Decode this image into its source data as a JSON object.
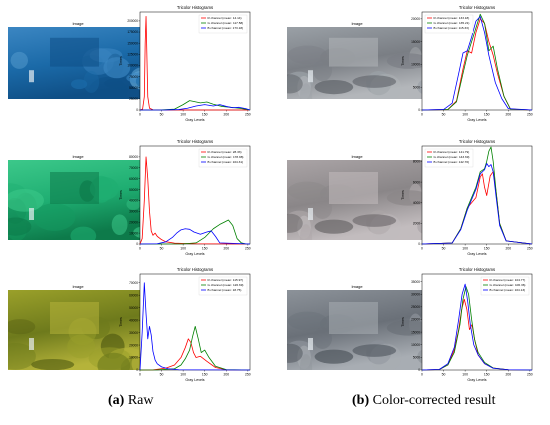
{
  "image_title": "Image",
  "captions": {
    "left_label": "(a)",
    "left_text": "Raw",
    "right_label": "(b)",
    "right_text": "Color-corrected result"
  },
  "photos": [
    {
      "id": "raw-1",
      "scene": "underwater wreck structure, blue cast",
      "colors": [
        "#1b6aa8",
        "#3b86c2",
        "#5aa0d0",
        "#0f4f86"
      ]
    },
    {
      "id": "raw-2",
      "scene": "seafloor rocks, green cast",
      "colors": [
        "#1fae72",
        "#3cc88a",
        "#159a60",
        "#0d7a4a"
      ]
    },
    {
      "id": "raw-3",
      "scene": "diver and equipment, yellow cast",
      "colors": [
        "#6e7a1c",
        "#9aa02a",
        "#4f5a10",
        "#b5b33a"
      ]
    },
    {
      "id": "corr-1",
      "scene": "underwater wreck structure, corrected",
      "colors": [
        "#7a7e84",
        "#9aa0a6",
        "#5e6268",
        "#b3b6ba"
      ]
    },
    {
      "id": "corr-2",
      "scene": "seafloor rocks, corrected",
      "colors": [
        "#8a8688",
        "#aaa4a6",
        "#6a6668",
        "#c2bcbe"
      ]
    },
    {
      "id": "corr-3",
      "scene": "diver and equipment, corrected",
      "colors": [
        "#6a7078",
        "#8c9299",
        "#4f555d",
        "#a8adb3"
      ]
    }
  ],
  "chart_data": [
    {
      "type": "line",
      "title": "Tricolor Histograms",
      "xlabel": "Gray Levels",
      "ylabel": "Times",
      "xlim": [
        0,
        255
      ],
      "ylim": [
        0,
        220000
      ],
      "yticks": [
        0,
        25000,
        50000,
        75000,
        100000,
        125000,
        150000,
        175000,
        200000
      ],
      "xticks": [
        0,
        50,
        100,
        150,
        200,
        250
      ],
      "legend_loc": "upper right",
      "series": [
        {
          "name": "R channel (mean: 14.14)",
          "color": "#ff0000",
          "x": [
            0,
            6,
            10,
            12,
            14,
            16,
            18,
            22,
            30,
            50,
            100,
            150,
            200,
            255
          ],
          "y": [
            0,
            2000,
            30000,
            150000,
            210000,
            120000,
            30000,
            4000,
            500,
            100,
            50,
            20,
            10,
            0
          ]
        },
        {
          "name": "G channel (mean: 117.58)",
          "color": "#008000",
          "x": [
            0,
            50,
            80,
            100,
            115,
            125,
            140,
            155,
            170,
            190,
            210,
            230,
            250,
            255
          ],
          "y": [
            0,
            100,
            2000,
            12000,
            21000,
            19000,
            16000,
            18000,
            13000,
            8000,
            6000,
            4000,
            1000,
            0
          ]
        },
        {
          "name": "B channel (mean: 173.18)",
          "color": "#0000ff",
          "x": [
            0,
            60,
            90,
            110,
            130,
            150,
            170,
            185,
            200,
            215,
            230,
            245,
            255
          ],
          "y": [
            0,
            100,
            1000,
            4000,
            9000,
            12000,
            9000,
            12000,
            8000,
            5000,
            6000,
            3000,
            0
          ]
        }
      ]
    },
    {
      "type": "line",
      "title": "Tricolor Histograms",
      "xlabel": "Gray Levels",
      "ylabel": "Times",
      "xlim": [
        0,
        255
      ],
      "ylim": [
        0,
        21500
      ],
      "yticks": [
        0,
        5000,
        10000,
        15000,
        20000
      ],
      "xticks": [
        0,
        50,
        100,
        150,
        200,
        250
      ],
      "legend_loc": "upper left",
      "series": [
        {
          "name": "R channel (mean: 133.18)",
          "color": "#ff0000",
          "x": [
            0,
            60,
            80,
            95,
            105,
            115,
            125,
            135,
            145,
            155,
            165,
            175,
            190,
            205,
            255
          ],
          "y": [
            0,
            100,
            2000,
            9000,
            13000,
            12500,
            17000,
            20000,
            19000,
            15000,
            12000,
            8000,
            3000,
            200,
            0
          ]
        },
        {
          "name": "G channel (mean: 135.21)",
          "color": "#008000",
          "x": [
            0,
            60,
            80,
            95,
            105,
            115,
            125,
            135,
            145,
            155,
            165,
            175,
            190,
            205,
            255
          ],
          "y": [
            0,
            100,
            1800,
            8000,
            12000,
            15000,
            18000,
            21000,
            19000,
            13000,
            14000,
            9000,
            3000,
            200,
            0
          ]
        },
        {
          "name": "B channel (mean: 115.33)",
          "color": "#0000ff",
          "x": [
            0,
            50,
            70,
            85,
            95,
            105,
            115,
            125,
            135,
            145,
            155,
            170,
            185,
            200,
            255
          ],
          "y": [
            0,
            100,
            1500,
            8000,
            12500,
            13000,
            16000,
            19500,
            20500,
            17000,
            12000,
            6000,
            2500,
            300,
            0
          ]
        }
      ]
    },
    {
      "type": "line",
      "title": "Tricolor Histograms",
      "xlabel": "Gray Levels",
      "ylabel": "Times",
      "xlim": [
        0,
        255
      ],
      "ylim": [
        0,
        90000
      ],
      "yticks": [
        0,
        10000,
        20000,
        30000,
        40000,
        50000,
        60000,
        70000,
        80000
      ],
      "xticks": [
        0,
        50,
        100,
        150,
        200,
        250
      ],
      "legend_loc": "upper right",
      "series": [
        {
          "name": "R channel (mean: 28.33)",
          "color": "#ff0000",
          "x": [
            0,
            5,
            10,
            14,
            18,
            22,
            26,
            30,
            35,
            40,
            50,
            60,
            80,
            120,
            255
          ],
          "y": [
            0,
            5000,
            40000,
            80000,
            60000,
            30000,
            12000,
            8000,
            10000,
            7000,
            4000,
            2000,
            800,
            200,
            0
          ]
        },
        {
          "name": "G channel (mean: 178.98)",
          "color": "#008000",
          "x": [
            0,
            100,
            130,
            150,
            170,
            185,
            195,
            205,
            215,
            225,
            235,
            245,
            255
          ],
          "y": [
            0,
            100,
            1000,
            6000,
            14000,
            18000,
            20000,
            22000,
            17000,
            5000,
            1000,
            100,
            0
          ]
        },
        {
          "name": "B channel (mean: 104.31)",
          "color": "#0000ff",
          "x": [
            0,
            40,
            60,
            75,
            85,
            95,
            105,
            115,
            125,
            140,
            155,
            165,
            175,
            185,
            255
          ],
          "y": [
            0,
            200,
            2000,
            6000,
            10000,
            13000,
            14000,
            13500,
            11000,
            9000,
            11000,
            12000,
            7000,
            1000,
            0
          ]
        }
      ]
    },
    {
      "type": "line",
      "title": "Tricolor Histograms",
      "xlabel": "Gray Levels",
      "ylabel": "Times",
      "xlim": [
        0,
        255
      ],
      "ylim": [
        0,
        9500
      ],
      "yticks": [
        0,
        2000,
        4000,
        6000,
        8000
      ],
      "xticks": [
        0,
        50,
        100,
        150,
        200,
        250
      ],
      "legend_loc": "upper left",
      "series": [
        {
          "name": "R channel (mean: 141.79)",
          "color": "#ff0000",
          "x": [
            0,
            70,
            90,
            105,
            115,
            125,
            135,
            140,
            145,
            150,
            158,
            165,
            172,
            180,
            195,
            255
          ],
          "y": [
            0,
            100,
            1500,
            3500,
            4000,
            4500,
            6500,
            6800,
            5500,
            4700,
            6600,
            7000,
            5000,
            2000,
            300,
            0
          ]
        },
        {
          "name": "G channel (mean: 143.69)",
          "color": "#008000",
          "x": [
            0,
            70,
            90,
            105,
            115,
            125,
            135,
            145,
            150,
            155,
            160,
            165,
            172,
            180,
            195,
            255
          ],
          "y": [
            0,
            100,
            1500,
            3500,
            4500,
            5500,
            7000,
            7300,
            8000,
            9000,
            9400,
            8000,
            5000,
            2000,
            300,
            0
          ]
        },
        {
          "name": "B channel (mean: 142.70)",
          "color": "#0000ff",
          "x": [
            0,
            70,
            90,
            105,
            115,
            125,
            135,
            145,
            150,
            155,
            160,
            165,
            172,
            180,
            195,
            255
          ],
          "y": [
            0,
            100,
            1400,
            3300,
            4300,
            5300,
            6800,
            7200,
            7800,
            7500,
            7700,
            7000,
            4500,
            1800,
            300,
            0
          ]
        }
      ]
    },
    {
      "type": "line",
      "title": "Tricolor Histograms",
      "xlabel": "Gray Levels",
      "ylabel": "Times",
      "xlim": [
        0,
        255
      ],
      "ylim": [
        0,
        77000
      ],
      "yticks": [
        0,
        10000,
        20000,
        30000,
        40000,
        50000,
        60000,
        70000
      ],
      "xticks": [
        0,
        50,
        100,
        150,
        200,
        250
      ],
      "legend_loc": "upper right",
      "series": [
        {
          "name": "R channel (mean: 115.97)",
          "color": "#ff0000",
          "x": [
            0,
            30,
            60,
            80,
            95,
            105,
            112,
            118,
            124,
            130,
            140,
            155,
            175,
            200,
            255
          ],
          "y": [
            0,
            100,
            1500,
            4000,
            10000,
            18000,
            25000,
            22000,
            14000,
            10000,
            11000,
            7000,
            2000,
            200,
            0
          ]
        },
        {
          "name": "G channel (mean: 126.69)",
          "color": "#008000",
          "x": [
            0,
            40,
            80,
            95,
            105,
            115,
            122,
            128,
            135,
            142,
            150,
            160,
            175,
            200,
            255
          ],
          "y": [
            0,
            100,
            1000,
            4000,
            9000,
            16000,
            27000,
            35000,
            25000,
            14000,
            16000,
            10000,
            3000,
            300,
            0
          ]
        },
        {
          "name": "B channel (mean: 18.75)",
          "color": "#0000ff",
          "x": [
            0,
            5,
            10,
            14,
            18,
            22,
            26,
            30,
            35,
            40,
            50,
            65,
            90,
            255
          ],
          "y": [
            0,
            30000,
            70000,
            45000,
            25000,
            35000,
            28000,
            15000,
            8000,
            5000,
            2500,
            1000,
            200,
            0
          ]
        }
      ]
    },
    {
      "type": "line",
      "title": "Tricolor Histograms",
      "xlabel": "Gray Levels",
      "ylabel": "Times",
      "xlim": [
        0,
        255
      ],
      "ylim": [
        0,
        38000
      ],
      "yticks": [
        0,
        5000,
        10000,
        15000,
        20000,
        25000,
        30000,
        35000
      ],
      "xticks": [
        0,
        50,
        100,
        150,
        200,
        250
      ],
      "legend_loc": "upper right",
      "series": [
        {
          "name": "R channel (mean: 104.77)",
          "color": "#ff0000",
          "x": [
            0,
            40,
            60,
            75,
            85,
            92,
            98,
            104,
            110,
            116,
            122,
            130,
            145,
            165,
            200,
            255
          ],
          "y": [
            0,
            200,
            2000,
            8000,
            16000,
            24000,
            28000,
            24000,
            16000,
            18000,
            12000,
            6000,
            2500,
            800,
            100,
            0
          ]
        },
        {
          "name": "G channel (mean: 106.36)",
          "color": "#008000",
          "x": [
            0,
            40,
            60,
            75,
            88,
            95,
            102,
            108,
            115,
            122,
            130,
            145,
            165,
            200,
            255
          ],
          "y": [
            0,
            200,
            2000,
            7000,
            18000,
            28000,
            33000,
            30000,
            20000,
            12000,
            7000,
            3000,
            800,
            100,
            0
          ]
        },
        {
          "name": "B channel (mean: 104.13)",
          "color": "#0000ff",
          "x": [
            0,
            40,
            60,
            75,
            85,
            93,
            100,
            106,
            112,
            120,
            130,
            145,
            165,
            200,
            255
          ],
          "y": [
            0,
            200,
            2500,
            9000,
            20000,
            30000,
            34000,
            27000,
            18000,
            10000,
            6000,
            2500,
            700,
            100,
            0
          ]
        }
      ]
    }
  ]
}
